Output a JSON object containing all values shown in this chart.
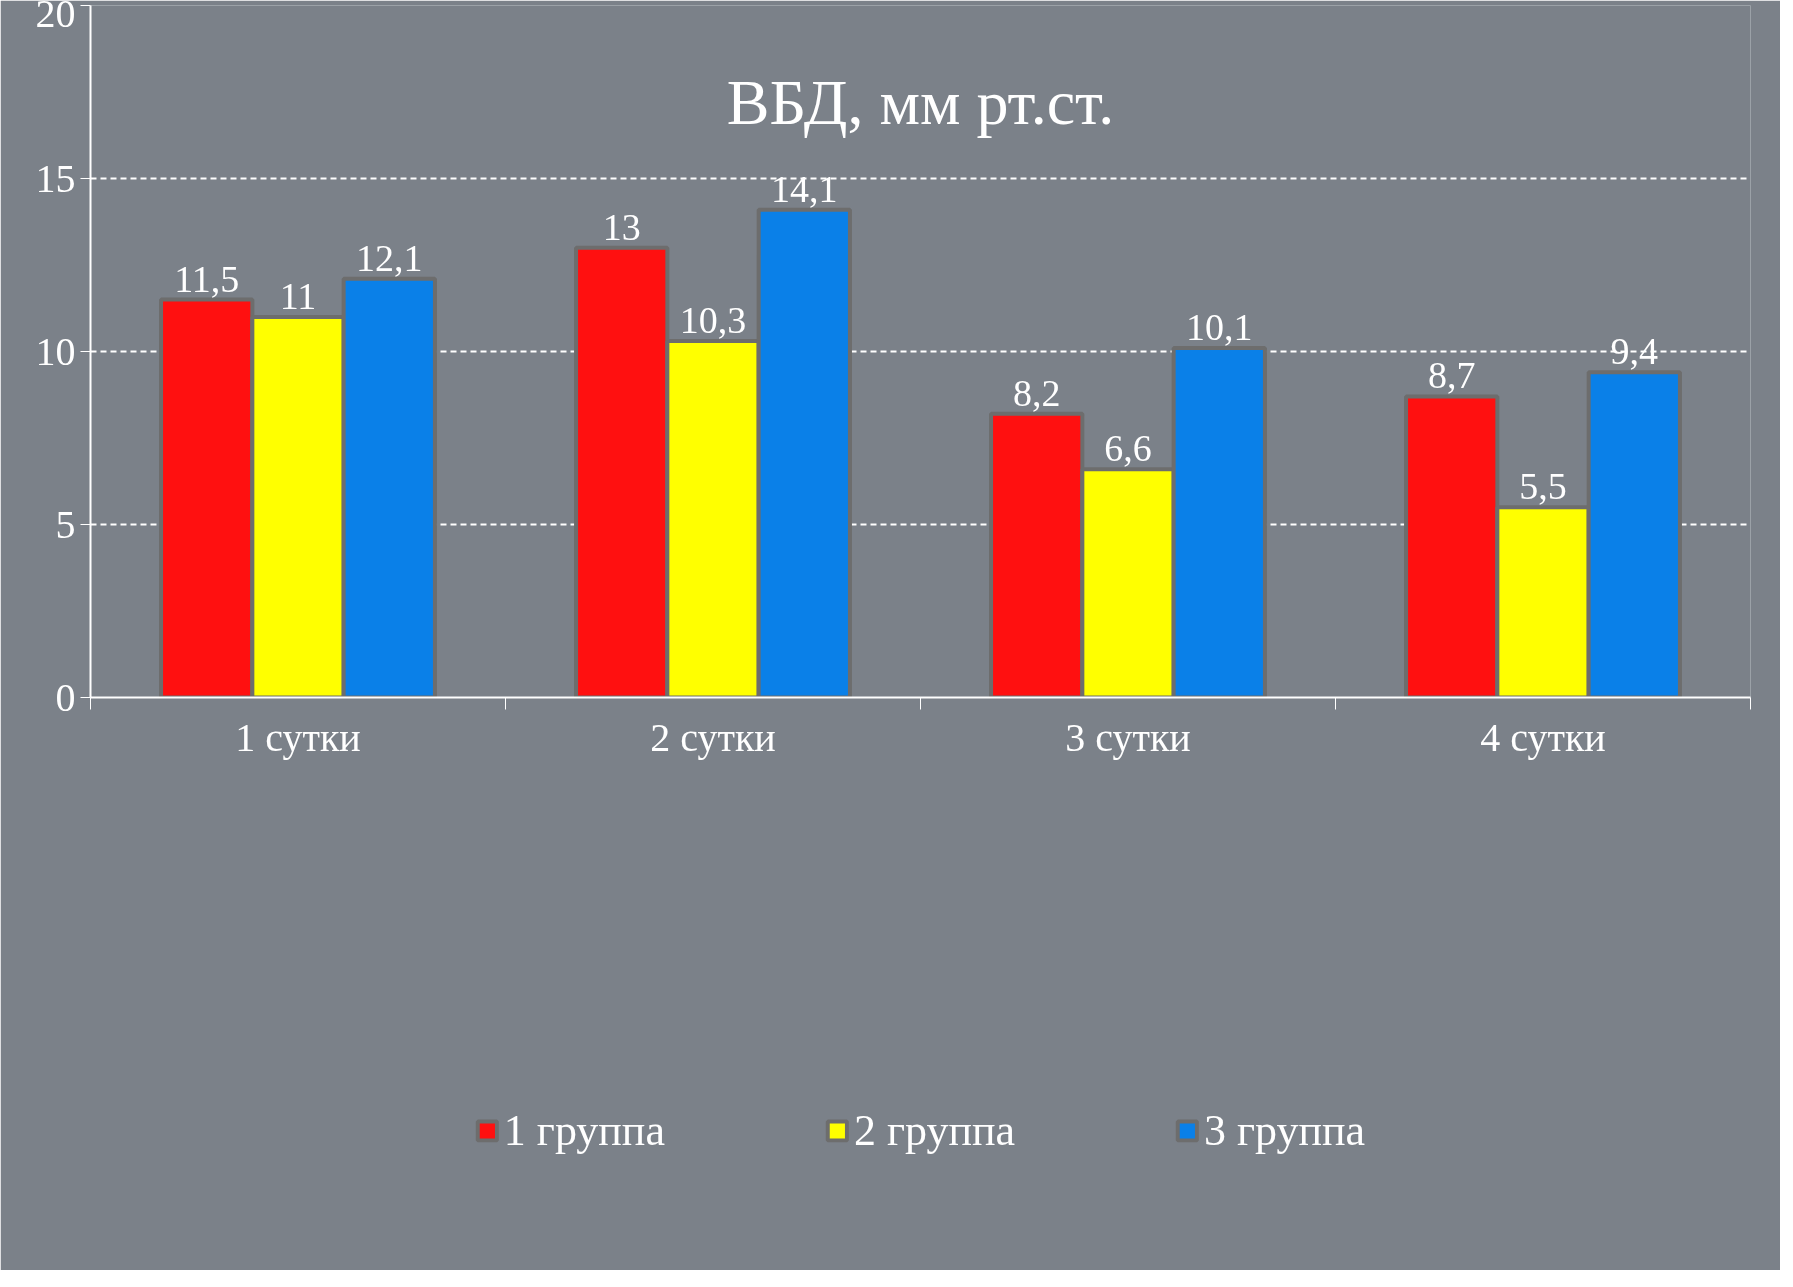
{
  "chart_data": {
    "type": "bar",
    "title": "ВБД, мм рт.ст.",
    "categories": [
      "1 сутки",
      "2 сутки",
      "3 сутки",
      "4 сутки"
    ],
    "series": [
      {
        "name": "1 группа",
        "color": "#ff1010",
        "values": [
          11.5,
          13,
          8.2,
          8.7
        ],
        "value_labels": [
          "11,5",
          "13",
          "8,2",
          "8,7"
        ]
      },
      {
        "name": "2 группа",
        "color": "#ffff00",
        "values": [
          11,
          10.3,
          6.6,
          5.5
        ],
        "value_labels": [
          "11",
          "10,3",
          "6,6",
          "5,5"
        ]
      },
      {
        "name": "3 группа",
        "color": "#0a80e8",
        "values": [
          12.1,
          14.1,
          10.1,
          9.4
        ],
        "value_labels": [
          "12,1",
          "14,1",
          "10,1",
          "9,4"
        ]
      }
    ],
    "ylim": [
      0,
      20
    ],
    "yticks": [
      0,
      5,
      10,
      15,
      20
    ],
    "grid": "y",
    "legend": "bottom"
  }
}
